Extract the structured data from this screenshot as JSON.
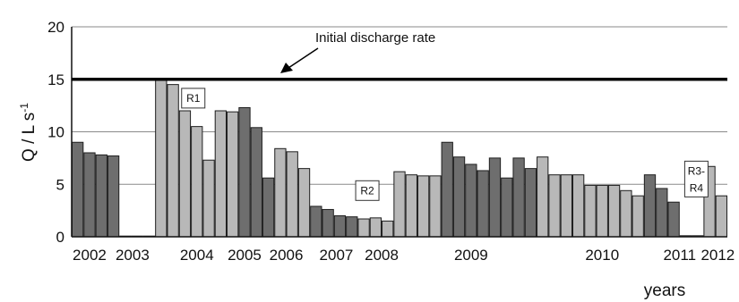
{
  "chart_data": {
    "type": "bar",
    "title": "",
    "ylabel": "Q / L s",
    "ylabel_sup": "-1",
    "xlabel": "years",
    "ylim": [
      0,
      20
    ],
    "yticks": [
      0,
      5,
      10,
      15,
      20
    ],
    "grid": "horizontal",
    "bars": [
      {
        "v": 9.0,
        "tone": "dark"
      },
      {
        "v": 8.0,
        "tone": "dark"
      },
      {
        "v": 7.8,
        "tone": "dark"
      },
      {
        "v": 7.7,
        "tone": "dark"
      },
      {
        "v": 0,
        "tone": "dark"
      },
      {
        "v": 0,
        "tone": "dark"
      },
      {
        "v": 0,
        "tone": "dark"
      },
      {
        "v": 15.1,
        "tone": "light"
      },
      {
        "v": 14.5,
        "tone": "light"
      },
      {
        "v": 12.0,
        "tone": "light"
      },
      {
        "v": 10.5,
        "tone": "light"
      },
      {
        "v": 7.3,
        "tone": "light"
      },
      {
        "v": 12.0,
        "tone": "light"
      },
      {
        "v": 11.9,
        "tone": "light"
      },
      {
        "v": 12.3,
        "tone": "dark"
      },
      {
        "v": 10.4,
        "tone": "dark"
      },
      {
        "v": 5.6,
        "tone": "dark"
      },
      {
        "v": 8.4,
        "tone": "light"
      },
      {
        "v": 8.1,
        "tone": "light"
      },
      {
        "v": 6.5,
        "tone": "light"
      },
      {
        "v": 2.9,
        "tone": "dark"
      },
      {
        "v": 2.6,
        "tone": "dark"
      },
      {
        "v": 2.0,
        "tone": "dark"
      },
      {
        "v": 1.9,
        "tone": "dark"
      },
      {
        "v": 1.7,
        "tone": "light"
      },
      {
        "v": 1.8,
        "tone": "light"
      },
      {
        "v": 1.5,
        "tone": "light"
      },
      {
        "v": 6.2,
        "tone": "light"
      },
      {
        "v": 5.9,
        "tone": "light"
      },
      {
        "v": 5.8,
        "tone": "light"
      },
      {
        "v": 5.8,
        "tone": "light"
      },
      {
        "v": 9.0,
        "tone": "dark"
      },
      {
        "v": 7.6,
        "tone": "dark"
      },
      {
        "v": 6.9,
        "tone": "dark"
      },
      {
        "v": 6.3,
        "tone": "dark"
      },
      {
        "v": 7.5,
        "tone": "dark"
      },
      {
        "v": 5.6,
        "tone": "dark"
      },
      {
        "v": 7.5,
        "tone": "dark"
      },
      {
        "v": 6.5,
        "tone": "dark"
      },
      {
        "v": 7.6,
        "tone": "light"
      },
      {
        "v": 5.9,
        "tone": "light"
      },
      {
        "v": 5.9,
        "tone": "light"
      },
      {
        "v": 5.9,
        "tone": "light"
      },
      {
        "v": 4.9,
        "tone": "light"
      },
      {
        "v": 4.9,
        "tone": "light"
      },
      {
        "v": 4.9,
        "tone": "light"
      },
      {
        "v": 4.4,
        "tone": "light"
      },
      {
        "v": 3.9,
        "tone": "light"
      },
      {
        "v": 5.9,
        "tone": "dark"
      },
      {
        "v": 4.6,
        "tone": "dark"
      },
      {
        "v": 3.3,
        "tone": "dark"
      },
      {
        "v": 0.1,
        "tone": "dark"
      },
      {
        "v": 0.1,
        "tone": "dark"
      },
      {
        "v": 6.7,
        "tone": "light"
      },
      {
        "v": 3.9,
        "tone": "light"
      }
    ],
    "year_labels": [
      {
        "label": "2002",
        "at": 1.5
      },
      {
        "label": "2003",
        "at": 5.1
      },
      {
        "label": "2004",
        "at": 10.5
      },
      {
        "label": "2005",
        "at": 14.5
      },
      {
        "label": "2006",
        "at": 18.0
      },
      {
        "label": "2007",
        "at": 22.2
      },
      {
        "label": "2008",
        "at": 26.0
      },
      {
        "label": "2009",
        "at": 33.5
      },
      {
        "label": "2010",
        "at": 44.5
      },
      {
        "label": "2011",
        "at": 51.0
      },
      {
        "label": "2012",
        "at": 54.2
      }
    ],
    "reference_line": {
      "value": 15,
      "label": "Initial discharge rate"
    },
    "annotations": [
      {
        "label": "R1",
        "at": 10.2,
        "y": 13.2
      },
      {
        "label": "R2",
        "at": 24.8,
        "y": 4.4
      },
      {
        "label": "R3-",
        "label2": "R4",
        "at": 52.4,
        "y": 5.5
      }
    ],
    "colors": {
      "dark": "#6e6e6e",
      "light": "#b8b8b8",
      "edge": "#1e1e1e",
      "grid": "#8a8a8a",
      "reference": "#000000"
    }
  }
}
